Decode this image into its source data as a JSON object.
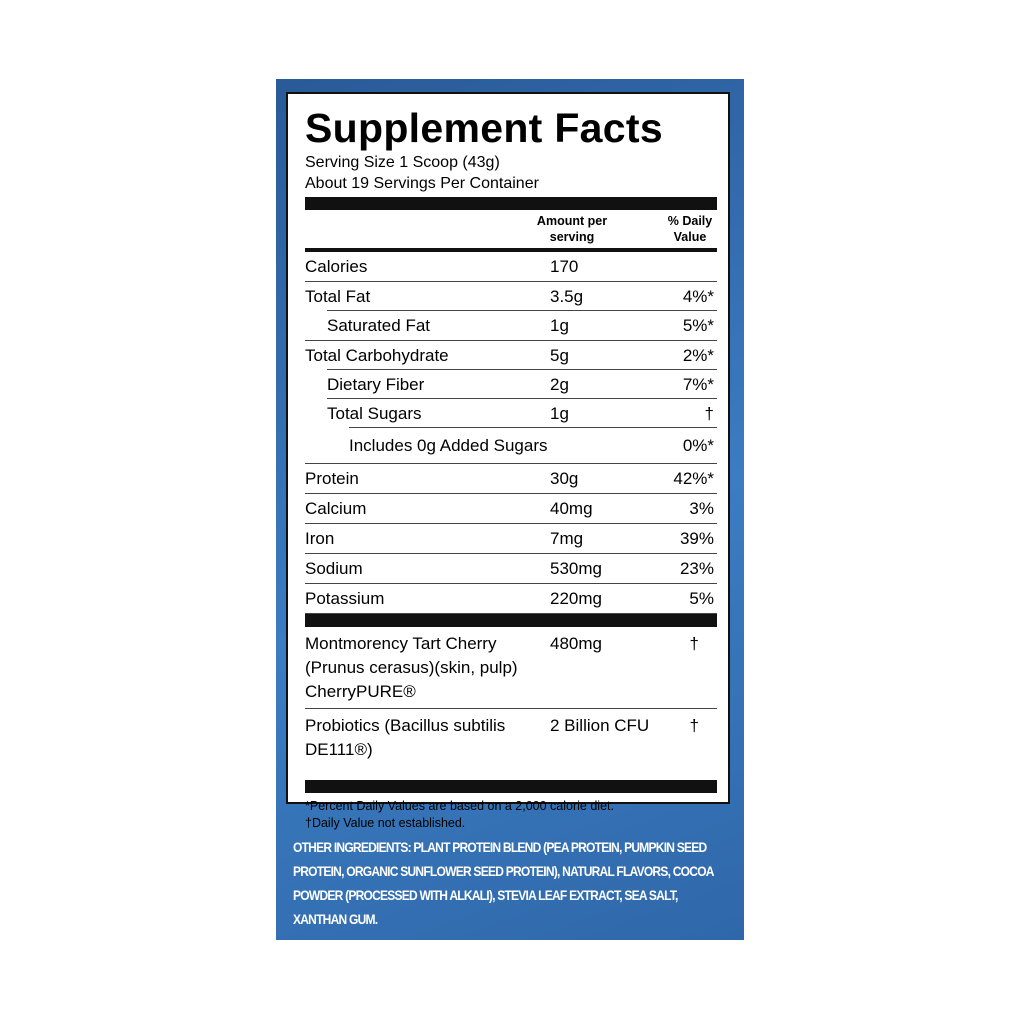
{
  "label": {
    "title": "Supplement Facts",
    "serving_size": "Serving Size 1 Scoop (43g)",
    "servings": "About 19 Servings Per Container",
    "header": {
      "amount": "Amount per serving",
      "dv": "% Daily Value"
    },
    "rows": [
      {
        "name": "Calories",
        "amount": "170",
        "level": 0
      },
      {
        "name": "Total Fat",
        "amount": "3.5g",
        "dv": "4%*",
        "level": 0
      },
      {
        "name": "Saturated Fat",
        "amount": "1g",
        "dv": "5%*",
        "level": 1
      },
      {
        "name": "Total Carbohydrate",
        "amount": "5g",
        "dv": "2%*",
        "level": 0
      },
      {
        "name": "Dietary Fiber",
        "amount": "2g",
        "dv": "7%*",
        "level": 1
      },
      {
        "name": "Total Sugars",
        "amount": "1g",
        "dv": "†",
        "level": 1
      },
      {
        "name": "Includes 0g Added Sugars",
        "dv": "0%*",
        "level": 2
      },
      {
        "name": "Protein",
        "amount": "30g",
        "dv": "42%*",
        "level": 0
      },
      {
        "name": "Calcium",
        "amount": "40mg",
        "dv": "3%",
        "level": 0
      },
      {
        "name": "Iron",
        "amount": "7mg",
        "dv": "39%",
        "level": 0
      },
      {
        "name": "Sodium",
        "amount": "530mg",
        "dv": "23%",
        "level": 0
      },
      {
        "name": "Potassium",
        "amount": "220mg",
        "dv": "5%",
        "level": 0
      }
    ],
    "extras": [
      {
        "name": "Montmorency Tart Cherry (Prunus cerasus)(skin, pulp) CherryPURE®",
        "amount": "480mg",
        "dv": "†"
      },
      {
        "name": "Probiotics (Bacillus subtilis DE111®)",
        "amount": "2 Billion CFU",
        "dv": "†"
      }
    ],
    "footnotes": [
      "*Percent Daily Values are based on a 2,000 calorie diet.",
      "†Daily Value not established."
    ]
  },
  "other_ingredients": "OTHER INGREDIENTS: PLANT PROTEIN BLEND (PEA PROTEIN, PUMPKIN SEED PROTEIN, ORGANIC SUNFLOWER SEED PROTEIN), NATURAL FLAVORS, COCOA POWDER (PROCESSED WITH ALKALI), STEVIA LEAF EXTRACT, SEA SALT, XANTHAN GUM."
}
